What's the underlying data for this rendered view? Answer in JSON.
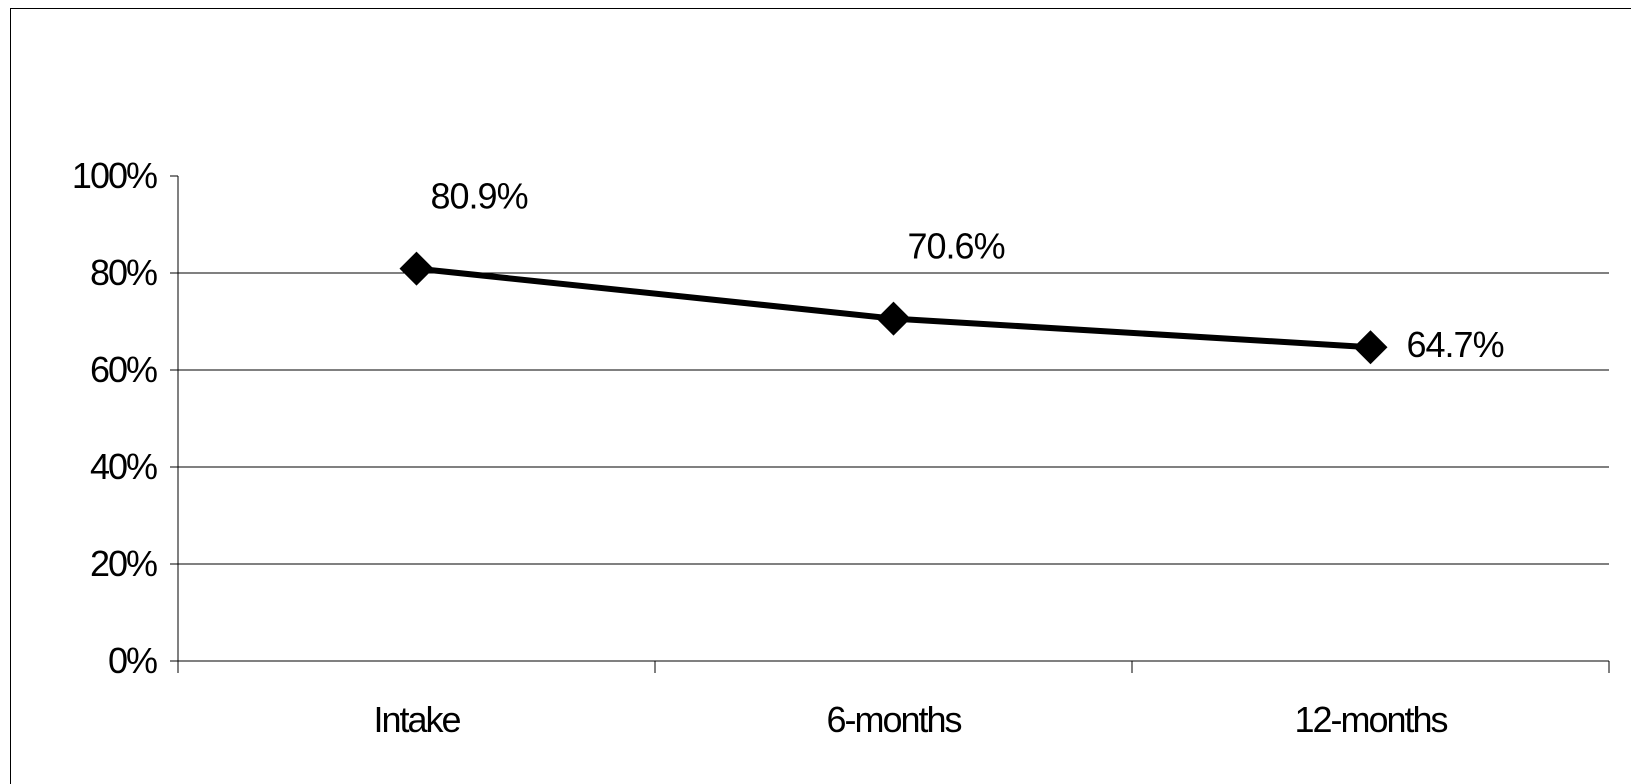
{
  "chart_data": {
    "type": "line",
    "title": "",
    "xlabel": "",
    "ylabel": "",
    "categories": [
      "Intake",
      "6-months",
      "12-months"
    ],
    "series": [
      {
        "values": [
          80.9,
          70.6,
          64.7
        ],
        "data_labels": [
          "80.9%",
          "70.6%",
          "64.7%"
        ],
        "marker": "diamond",
        "color": "#000000"
      }
    ],
    "y_ticks": [
      0,
      20,
      40,
      60,
      80,
      100
    ],
    "y_tick_labels": [
      "0%",
      "20%",
      "40%",
      "60%",
      "80%",
      "100%"
    ],
    "ylim": [
      0,
      100
    ],
    "grid": true,
    "legend": "none"
  }
}
